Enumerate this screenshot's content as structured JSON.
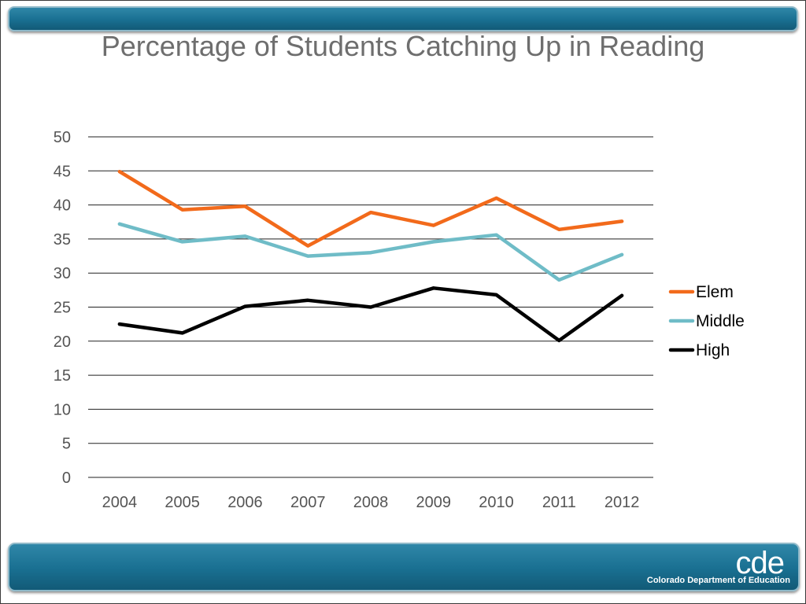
{
  "slide": {
    "title": "Percentage of Students Catching Up in Reading",
    "logo_text": "cde",
    "org_name": "Colorado Department of Education",
    "bar_color": "#196f91"
  },
  "chart_data": {
    "type": "line",
    "title": "",
    "xlabel": "",
    "ylabel": "",
    "x": [
      "2004",
      "2005",
      "2006",
      "2007",
      "2008",
      "2009",
      "2010",
      "2011",
      "2012"
    ],
    "ylim": [
      0,
      50
    ],
    "yticks": [
      "0",
      "5",
      "10",
      "15",
      "20",
      "25",
      "30",
      "35",
      "40",
      "45",
      "50"
    ],
    "grid": true,
    "legend_position": "right",
    "series": [
      {
        "name": "Elem",
        "color": "#f26a1b",
        "values": [
          44.9,
          39.3,
          39.8,
          34.0,
          38.9,
          37.0,
          41.0,
          36.4,
          37.6
        ]
      },
      {
        "name": "Middle",
        "color": "#6fbcc7",
        "values": [
          37.2,
          34.6,
          35.4,
          32.5,
          33.0,
          34.6,
          35.6,
          29.0,
          32.7
        ]
      },
      {
        "name": "High",
        "color": "#000000",
        "values": [
          22.5,
          21.2,
          25.1,
          26.0,
          25.0,
          27.8,
          26.8,
          20.1,
          26.7
        ]
      }
    ]
  }
}
